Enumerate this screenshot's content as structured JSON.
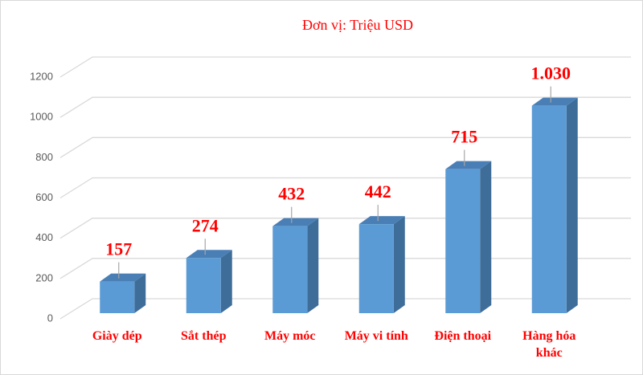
{
  "chart_data": {
    "type": "bar3d",
    "title": "Đơn vị: Triệu USD",
    "categories": [
      "Giày dép",
      "Sắt thép",
      "Máy móc",
      "Máy vi tính",
      "Điện thoại",
      "Hàng hóa khác"
    ],
    "values": [
      157,
      274,
      432,
      442,
      715,
      1030
    ],
    "value_labels": [
      "157",
      "274",
      "432",
      "442",
      "715",
      "1.030"
    ],
    "color": "#5b9bd5",
    "ylim": [
      0,
      1200
    ],
    "yticks": [
      0,
      200,
      400,
      600,
      800,
      1000,
      1200
    ],
    "grid": true
  }
}
